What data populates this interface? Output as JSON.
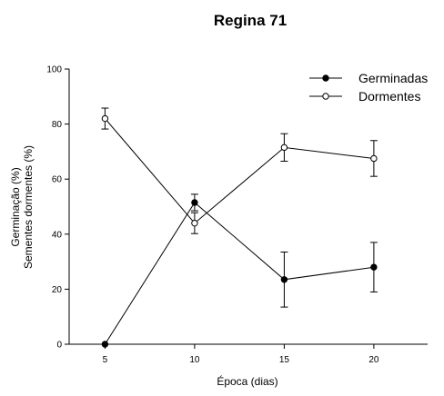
{
  "chart_data": {
    "type": "line",
    "title": "Regina 71",
    "xlabel": "Época (dias)",
    "ylabel_lines": [
      "Germinação (%)",
      "Sementes dormentes (%)"
    ],
    "x_ticks": [
      "5",
      "10",
      "15",
      "20"
    ],
    "y_ticks": [
      "0",
      "20",
      "40",
      "60",
      "80",
      "100"
    ],
    "xlim": [
      3,
      23
    ],
    "ylim": [
      0,
      100
    ],
    "grid": false,
    "legend_position": "top-right",
    "series": [
      {
        "name": "Germinadas",
        "marker": "filled-circle",
        "color": "#000000",
        "x": [
          5,
          10,
          15,
          20
        ],
        "y": [
          0,
          51.5,
          23.5,
          28
        ],
        "error": [
          0,
          3,
          10,
          9
        ]
      },
      {
        "name": "Dormentes",
        "marker": "open-circle",
        "color": "#000000",
        "x": [
          5,
          10,
          15,
          20
        ],
        "y": [
          82,
          44,
          71.5,
          67.5
        ],
        "error": [
          3.8,
          3.8,
          5,
          6.5
        ]
      }
    ]
  }
}
